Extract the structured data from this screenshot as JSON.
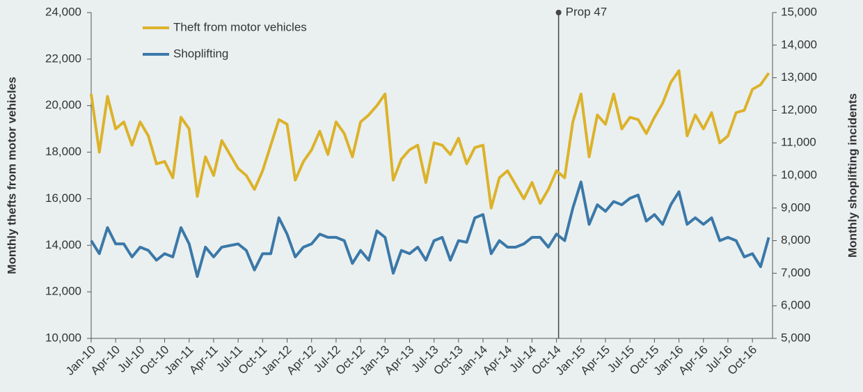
{
  "chart_data": {
    "type": "line",
    "ylabel": "Monthly thefts from motor vehicles",
    "y2label": "Monthly shoplifting incidents",
    "categories": [
      "Jan-10",
      null,
      null,
      "Apr-10",
      null,
      null,
      "Jul-10",
      null,
      null,
      "Oct-10",
      null,
      null,
      "Jan-11",
      null,
      null,
      "Apr-11",
      null,
      null,
      "Jul-11",
      null,
      null,
      "Oct-11",
      null,
      null,
      "Jan-12",
      null,
      null,
      "Apr-12",
      null,
      null,
      "Jul-12",
      null,
      null,
      "Oct-12",
      null,
      null,
      "Jan-13",
      null,
      null,
      "Apr-13",
      null,
      null,
      "Jul-13",
      null,
      null,
      "Oct-13",
      null,
      null,
      "Jan-14",
      null,
      null,
      "Apr-14",
      null,
      null,
      "Jul-14",
      null,
      null,
      "Oct-14",
      null,
      null,
      "Jan-15",
      null,
      null,
      "Apr-15",
      null,
      null,
      "Jul-15",
      null,
      null,
      "Oct-15",
      null,
      null,
      "Jan-16",
      null,
      null,
      "Apr-16",
      null,
      null,
      "Jul-16",
      null,
      null,
      "Oct-16",
      null,
      null
    ],
    "series": [
      {
        "name": "Theft from motor vehicles",
        "color": "#dcb22a",
        "axis": "y",
        "values": [
          20500,
          18000,
          20400,
          19000,
          19300,
          18300,
          19300,
          18700,
          17500,
          17600,
          16900,
          19500,
          19000,
          16100,
          17800,
          17000,
          18500,
          17900,
          17300,
          17000,
          16400,
          17200,
          18300,
          19400,
          19200,
          16800,
          17600,
          18100,
          18900,
          17900,
          19300,
          18800,
          17800,
          19300,
          19600,
          20000,
          20500,
          16800,
          17700,
          18100,
          18300,
          16700,
          18400,
          18300,
          17900,
          18600,
          17500,
          18200,
          18300,
          15600,
          16900,
          17200,
          16600,
          16000,
          16700,
          15800,
          16400,
          17200,
          16900,
          19300,
          20500,
          17800,
          19600,
          19200,
          20500,
          19000,
          19500,
          19400,
          18800,
          19500,
          20100,
          21000,
          21500,
          18700,
          19600,
          19000,
          19700,
          18400,
          18700,
          19700,
          19800,
          20700,
          20900,
          21400
        ]
      },
      {
        "name": "Shoplifting",
        "color": "#3b78a8",
        "axis": "y2",
        "values": [
          8000,
          7600,
          8400,
          7900,
          7900,
          7500,
          7800,
          7700,
          7400,
          7600,
          7500,
          8400,
          7900,
          6900,
          7800,
          7500,
          7800,
          7850,
          7900,
          7700,
          7100,
          7600,
          7600,
          8700,
          8200,
          7500,
          7800,
          7900,
          8200,
          8100,
          8100,
          8000,
          7300,
          7700,
          7400,
          8300,
          8100,
          7000,
          7700,
          7600,
          7800,
          7400,
          8000,
          8100,
          7400,
          8000,
          7950,
          8700,
          8800,
          7600,
          8000,
          7800,
          7800,
          7900,
          8100,
          8100,
          7800,
          8200,
          8000,
          9000,
          9800,
          8500,
          9100,
          8900,
          9200,
          9100,
          9300,
          9400,
          8600,
          8800,
          8500,
          9100,
          9500,
          8500,
          8700,
          8500,
          8700,
          8000,
          8100,
          8000,
          7500,
          7600,
          7200,
          8100
        ]
      }
    ],
    "ylim": [
      10000,
      24000
    ],
    "yticks": [
      {
        "value": 10000,
        "label": "10,000"
      },
      {
        "value": 12000,
        "label": "12,000"
      },
      {
        "value": 14000,
        "label": "14,000"
      },
      {
        "value": 16000,
        "label": "16,000"
      },
      {
        "value": 18000,
        "label": "18,000"
      },
      {
        "value": 20000,
        "label": "20,000"
      },
      {
        "value": 22000,
        "label": "22,000"
      },
      {
        "value": 24000,
        "label": "24,000"
      }
    ],
    "y2lim": [
      5000,
      15000
    ],
    "y2ticks": [
      {
        "value": 5000,
        "label": "5,000"
      },
      {
        "value": 6000,
        "label": "6,000"
      },
      {
        "value": 7000,
        "label": "7,000"
      },
      {
        "value": 8000,
        "label": "8,000"
      },
      {
        "value": 9000,
        "label": "9,000"
      },
      {
        "value": 10000,
        "label": "10,000"
      },
      {
        "value": 11000,
        "label": "11,000"
      },
      {
        "value": 12000,
        "label": "12,000"
      },
      {
        "value": 13000,
        "label": "13,000"
      },
      {
        "value": 14000,
        "label": "14,000"
      },
      {
        "value": 15000,
        "label": "15,000"
      }
    ],
    "annotations": [
      {
        "text": "Prop 47",
        "x": "Oct-14"
      }
    ],
    "legend": "upper left"
  }
}
